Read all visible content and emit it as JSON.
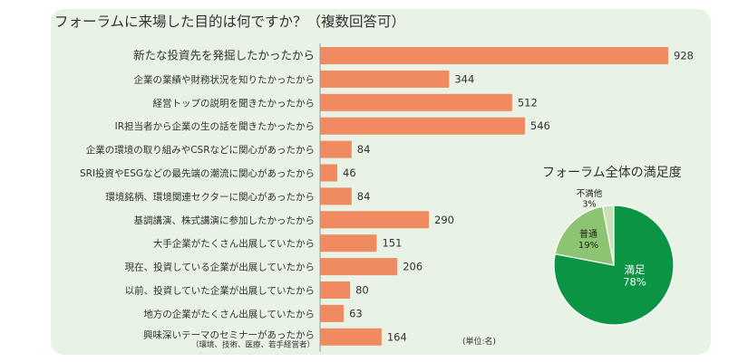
{
  "chart_data": [
    {
      "type": "bar",
      "orientation": "horizontal",
      "title": "フォーラムに来場した目的は何ですか？（複数回答可）",
      "unit": "(単位:名)",
      "color": "#f08a60",
      "categories": [
        "新たな投資先を発掘したかったから",
        "企業の業績や財務状況を知りたかったから",
        "経営トップの説明を聞きたかったから",
        "IR担当者から企業の生の話を聞きたかったから",
        "企業の環境の取り組みやCSRなどに関心があったから",
        "SRI投資やESGなどの最先端の潮流に関心があったから",
        "環境銘柄、環境関連セクターに関心があったから",
        "基調講演、株式講演に参加したかったから",
        "大手企業がたくさん出展していたから",
        "現在、投資している企業が出展していたから",
        "以前、投資していた企業が出展していたから",
        "地方の企業がたくさん出展していたから",
        "興味深いテーマのセミナーがあったから"
      ],
      "sublabels": [
        "",
        "",
        "",
        "",
        "",
        "",
        "",
        "",
        "",
        "",
        "",
        "",
        "（環境、技術、医療、若手経営者）"
      ],
      "values": [
        928,
        344,
        512,
        546,
        84,
        46,
        84,
        290,
        151,
        206,
        80,
        63,
        164
      ]
    },
    {
      "type": "pie",
      "title": "フォーラム全体の満足度",
      "slices": [
        {
          "label": "満足",
          "value": 78,
          "display": "78%",
          "color": "#0b9444"
        },
        {
          "label": "普通",
          "value": 19,
          "display": "19%",
          "color": "#8cc472"
        },
        {
          "label": "不満他",
          "value": 3,
          "display": "3%",
          "color": "#c9e1b5"
        }
      ]
    }
  ]
}
